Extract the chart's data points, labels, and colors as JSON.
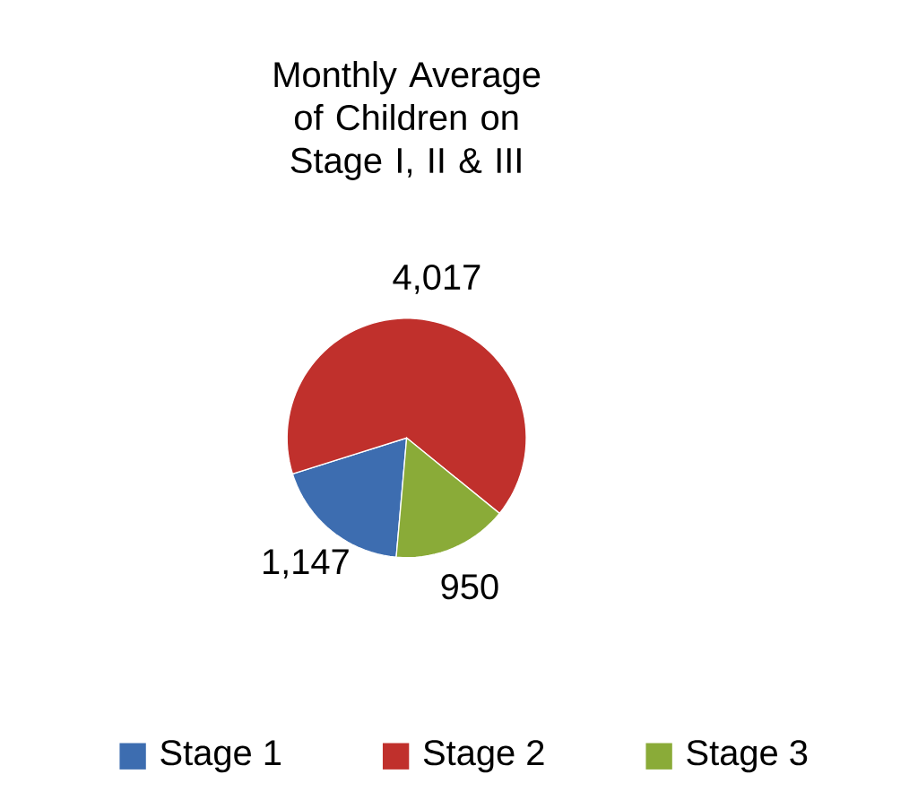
{
  "chart_data": {
    "type": "pie",
    "title": "Monthly Average of Children on Stage I, II & III",
    "categories": [
      "Stage 1",
      "Stage 2",
      "Stage 3"
    ],
    "values": [
      1147,
      4017,
      950
    ],
    "value_labels": [
      "1,147",
      "4,017",
      "950"
    ],
    "colors": [
      "#3d6db0",
      "#c0302c",
      "#8aab38"
    ],
    "legend": "bottom"
  }
}
